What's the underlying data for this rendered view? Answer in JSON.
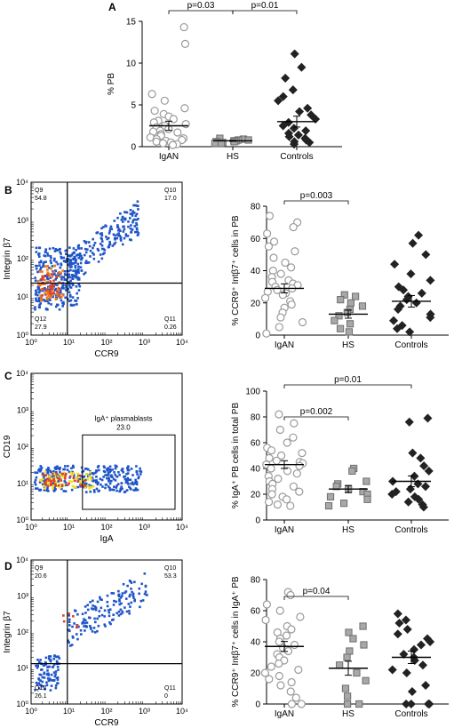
{
  "figure": {
    "colors": {
      "open_circle": "#9a9a9a",
      "hs_square": "#8a8a8a",
      "controls_diamond": "#222222",
      "flow_blue": "#1f55c8",
      "flow_red": "#e0402a",
      "flow_yellow": "#f0e020",
      "flow_orange": "#ef7a20"
    }
  },
  "chart_data": [
    {
      "id": "A",
      "panel_label": "A",
      "type": "scatter",
      "ylabel": "% PB",
      "ylim": [
        0,
        15
      ],
      "yticks": [
        "0",
        "5",
        "10",
        "15"
      ],
      "categories": [
        "IgAN",
        "HS",
        "Controls"
      ],
      "series": [
        {
          "values": [
            14.3,
            12.3,
            6.3,
            5.5,
            4.6,
            4.3,
            3.9,
            3.6,
            3.3,
            3.1,
            2.9,
            2.7,
            2.5,
            2.3,
            2.1,
            1.9,
            1.8,
            1.7,
            1.5,
            1.3,
            1.1,
            1.0,
            0.9,
            0.8,
            0.7,
            0.6,
            0.5,
            0.4,
            0.3,
            0.2
          ],
          "mean": 2.5,
          "sem": 0.55
        },
        {
          "values": [
            1.0,
            0.9,
            0.8,
            0.8,
            0.7,
            0.7,
            0.6,
            0.6,
            0.5,
            0.5,
            0.4,
            0.4
          ],
          "mean": 0.7,
          "sem": 0.06
        },
        {
          "values": [
            11.1,
            9.5,
            8.2,
            6.8,
            6.0,
            5.5,
            4.6,
            4.2,
            3.8,
            3.3,
            2.9,
            2.5,
            2.2,
            1.9,
            1.6,
            1.4,
            1.2,
            1.0,
            0.8,
            0.6,
            0.5,
            0.3
          ],
          "mean": 3.0,
          "sem": 0.65
        }
      ],
      "brackets": [
        {
          "from": 0,
          "to": 1,
          "label": "p=0.03"
        },
        {
          "from": 1,
          "to": 2,
          "label": "p=0.01"
        }
      ]
    },
    {
      "id": "B",
      "panel_label": "B",
      "type": "scatter",
      "ylabel": "% CCR9⁺ Intβ7⁺ cells in PB",
      "ylim": [
        0,
        80
      ],
      "yticks": [
        "0",
        "20",
        "40",
        "60",
        "80"
      ],
      "categories": [
        "IgAN",
        "HS",
        "Controls"
      ],
      "series": [
        {
          "values": [
            74,
            70,
            67,
            63,
            58,
            55,
            52,
            48,
            45,
            42,
            40,
            38,
            36,
            34,
            33,
            32,
            31,
            30,
            29,
            28,
            27,
            26,
            25,
            23,
            21,
            19,
            17,
            14,
            11,
            8,
            5,
            1
          ],
          "mean": 29,
          "sem": 2.8
        },
        {
          "values": [
            25,
            24,
            22,
            20,
            18,
            16,
            14,
            12,
            9,
            7,
            4,
            2
          ],
          "mean": 13,
          "sem": 2.5
        },
        {
          "values": [
            62,
            57,
            50,
            44,
            38,
            34,
            30,
            28,
            26,
            24,
            22,
            20,
            18,
            16,
            13,
            11,
            9,
            6,
            4,
            2
          ],
          "mean": 21,
          "sem": 3.6
        }
      ],
      "brackets": [
        {
          "from": 0,
          "to": 1,
          "label": "p=0.003"
        }
      ]
    },
    {
      "id": "C",
      "panel_label": "C",
      "type": "scatter",
      "ylabel": "% IgA⁺ PB cells in total PB",
      "ylim": [
        0,
        100
      ],
      "yticks": [
        "0",
        "20",
        "40",
        "60",
        "80",
        "100"
      ],
      "categories": [
        "IgAN",
        "HS",
        "Controls"
      ],
      "series": [
        {
          "values": [
            82,
            75,
            70,
            64,
            60,
            56,
            54,
            52,
            50,
            48,
            46,
            45,
            44,
            43,
            42,
            40,
            38,
            36,
            34,
            32,
            30,
            28,
            26,
            24,
            22,
            20,
            18,
            16,
            14,
            12,
            11
          ],
          "mean": 43,
          "sem": 3.0
        },
        {
          "values": [
            40,
            38,
            30,
            28,
            26,
            24,
            22,
            20,
            18,
            16,
            13,
            11
          ],
          "mean": 24,
          "sem": 2.8
        },
        {
          "values": [
            79,
            76,
            52,
            48,
            42,
            38,
            34,
            30,
            28,
            26,
            24,
            22,
            20,
            18,
            16,
            14,
            12,
            10
          ],
          "mean": 30,
          "sem": 4.2
        }
      ],
      "brackets": [
        {
          "from": 0,
          "to": 1,
          "label": "p=0.002"
        },
        {
          "from": 0,
          "to": 2,
          "label": "p=0.01"
        }
      ]
    },
    {
      "id": "D",
      "panel_label": "D",
      "type": "scatter",
      "ylabel": "% CCR9⁺ Intβ7⁺ cells in IgA⁺ PB",
      "ylim": [
        0,
        80
      ],
      "yticks": [
        "0",
        "20",
        "40",
        "60",
        "80"
      ],
      "categories": [
        "IgAN",
        "HS",
        "Controls"
      ],
      "series": [
        {
          "values": [
            72,
            70,
            64,
            60,
            56,
            54,
            50,
            48,
            46,
            44,
            42,
            40,
            38,
            36,
            35,
            34,
            32,
            30,
            28,
            26,
            24,
            22,
            20,
            18,
            16,
            14,
            12,
            8,
            4,
            0,
            0
          ],
          "mean": 37,
          "sem": 3.2
        },
        {
          "values": [
            50,
            46,
            42,
            38,
            34,
            30,
            25,
            20,
            15,
            10,
            5,
            0,
            0
          ],
          "mean": 23,
          "sem": 4.5
        },
        {
          "values": [
            58,
            54,
            52,
            48,
            45,
            42,
            40,
            38,
            35,
            32,
            30,
            28,
            25,
            22,
            20,
            12,
            8,
            0,
            0,
            0,
            0
          ],
          "mean": 30,
          "sem": 4.0
        }
      ],
      "brackets": [
        {
          "from": 0,
          "to": 1,
          "label": "p=0.04"
        }
      ]
    }
  ],
  "flow_plots": [
    {
      "id": "flowB",
      "ylabel": "Integrin β7",
      "xlabel": "CCR9",
      "tick_labels": [
        "10⁰",
        "10¹",
        "10²",
        "10³",
        "10⁴"
      ],
      "quadrants": [
        {
          "name": "Q9",
          "value": "54.8"
        },
        {
          "name": "Q10",
          "value": "17.0"
        },
        {
          "name": "Q12",
          "value": "27.9"
        },
        {
          "name": "Q11",
          "value": "0.26"
        }
      ]
    },
    {
      "id": "flowC",
      "ylabel": "CD19",
      "xlabel": "IgA",
      "tick_labels": [
        "10⁰",
        "10¹",
        "10²",
        "10³",
        "10⁴"
      ],
      "gate_name": "IgA⁺ plasmablasts",
      "gate_value": "23.0"
    },
    {
      "id": "flowD",
      "ylabel": "Integrin β7",
      "xlabel": "CCR9",
      "tick_labels": [
        "10⁰",
        "10¹",
        "10²",
        "10³",
        "10⁴"
      ],
      "quadrants": [
        {
          "name": "Q9",
          "value": "20.6"
        },
        {
          "name": "Q10",
          "value": "53.3"
        },
        {
          "name": "Q12",
          "value": "26.1"
        },
        {
          "name": "Q11",
          "value": "0"
        }
      ]
    }
  ]
}
